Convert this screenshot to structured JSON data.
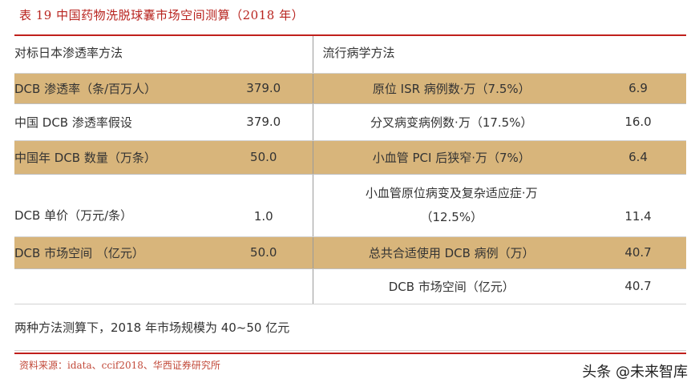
{
  "title": "表 19  中国药物洗脱球囊市场空间测算（2018 年）",
  "table": {
    "header": {
      "left": "对标日本渗透率方法",
      "right": "流行病学方法"
    },
    "rows": [
      {
        "left_label": "DCB 渗透率（条/百万人）",
        "left_value": "379.0",
        "right_label": "原位 ISR 病例数·万（7.5%）",
        "right_value": "6.9",
        "shaded": true
      },
      {
        "left_label": "中国 DCB 渗透率假设",
        "left_value": "379.0",
        "right_label": "分叉病变病例数·万（17.5%）",
        "right_value": "16.0",
        "shaded": false
      },
      {
        "left_label": "中国年 DCB 数量（万条）",
        "left_value": "50.0",
        "right_label": "小血管 PCI 后狭窄·万（7%）",
        "right_value": "6.4",
        "shaded": true
      },
      {
        "left_label": "DCB 单价（万元/条）",
        "left_value": "1.0",
        "right_label_line1": "小血管原位病变及复杂适应症·万",
        "right_label_line2": "（12.5%）",
        "right_value": "11.4",
        "shaded": false
      },
      {
        "left_label": "DCB 市场空间 （亿元）",
        "left_value": "50.0",
        "right_label": "总共合适使用 DCB 病例（万）",
        "right_value": "40.7",
        "shaded": true
      },
      {
        "left_label": "",
        "left_value": "",
        "right_label": "DCB 市场空间（亿元）",
        "right_value": "40.7",
        "shaded": false
      }
    ],
    "footer": "两种方法测算下，2018 年市场规模为 40~50 亿元"
  },
  "source": "资料来源：idata、ccif2018、华西证券研究所",
  "watermark": {
    "icon": "toutiao-logo",
    "text": "头条 @未来智库"
  }
}
